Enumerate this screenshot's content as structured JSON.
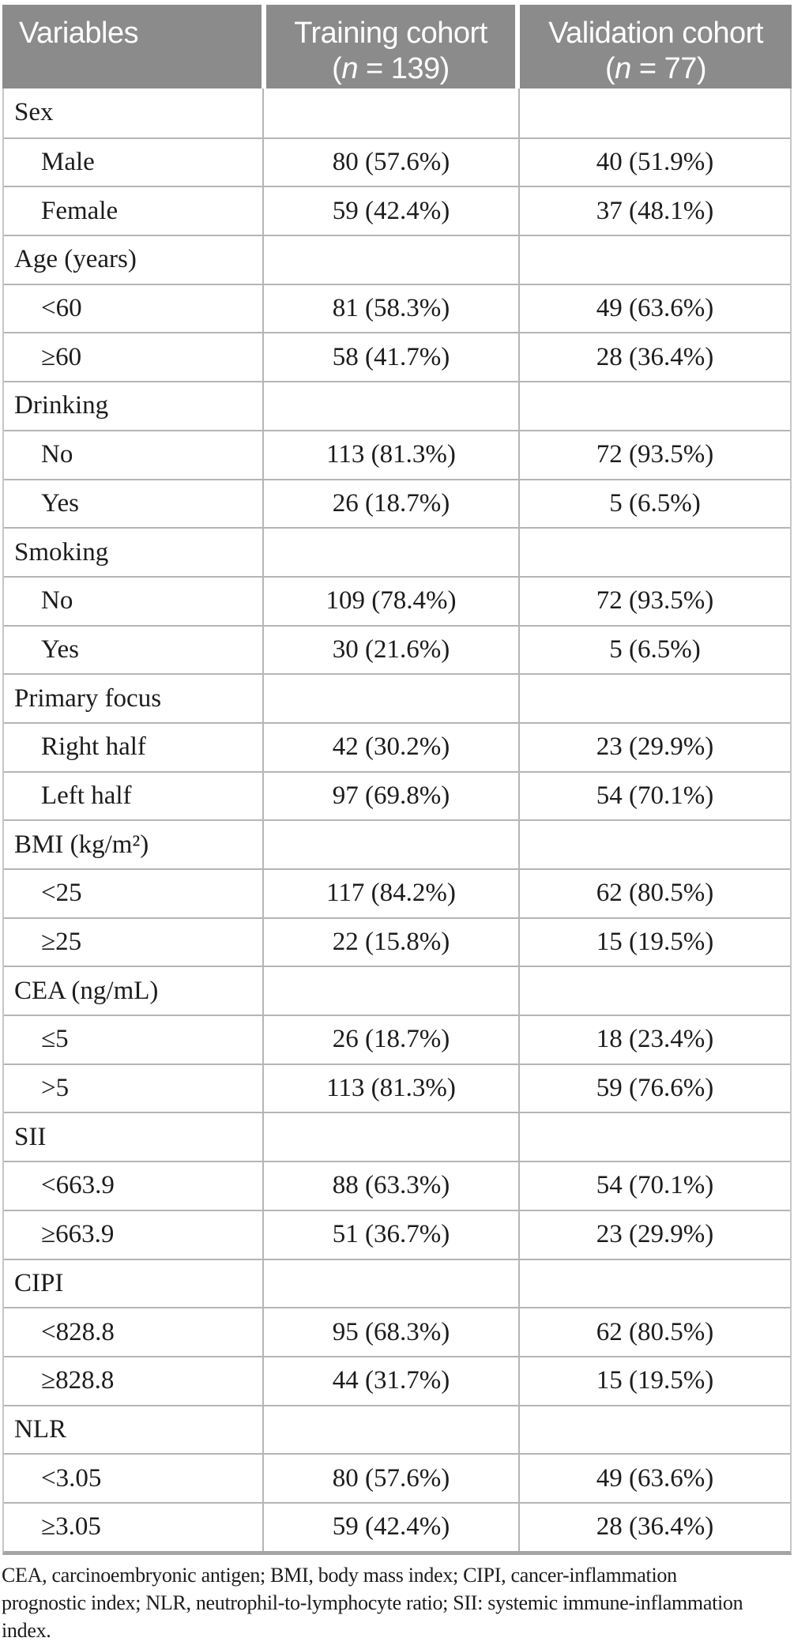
{
  "page": {
    "background_color": "#ffffff",
    "header_bg_color": "#8b8b8b",
    "header_text_color": "#ffffff",
    "body_text_color": "#1c1c1c",
    "border_color": "#b5b5b5"
  },
  "header": {
    "variables_label": "Variables",
    "training": {
      "title": "Training cohort",
      "n_open": "(",
      "n_italic": "n",
      "n_rest": " = 139)"
    },
    "validation": {
      "title": "Validation cohort",
      "n_open": "(",
      "n_italic": "n",
      "n_rest": " = 77)"
    }
  },
  "table": {
    "rows": [
      {
        "label": "Sex",
        "type": "category",
        "training": "",
        "validation": ""
      },
      {
        "label": "Male",
        "type": "item",
        "training": "80 (57.6%)",
        "validation": "40 (51.9%)"
      },
      {
        "label": "Female",
        "type": "item",
        "training": "59 (42.4%)",
        "validation": "37 (48.1%)"
      },
      {
        "label": "Age (years)",
        "type": "category",
        "training": "",
        "validation": ""
      },
      {
        "label": "<60",
        "type": "item",
        "training": "81 (58.3%)",
        "validation": "49 (63.6%)"
      },
      {
        "label": "≥60",
        "type": "item",
        "training": "58 (41.7%)",
        "validation": "28 (36.4%)"
      },
      {
        "label": "Drinking",
        "type": "category",
        "training": "",
        "validation": ""
      },
      {
        "label": "No",
        "type": "item",
        "training": "113 (81.3%)",
        "validation": "72 (93.5%)"
      },
      {
        "label": "Yes",
        "type": "item",
        "training": "26 (18.7%)",
        "validation": "5 (6.5%)"
      },
      {
        "label": "Smoking",
        "type": "category",
        "training": "",
        "validation": ""
      },
      {
        "label": "No",
        "type": "item",
        "training": "109 (78.4%)",
        "validation": "72 (93.5%)"
      },
      {
        "label": "Yes",
        "type": "item",
        "training": "30 (21.6%)",
        "validation": "5 (6.5%)"
      },
      {
        "label": "Primary focus",
        "type": "category",
        "training": "",
        "validation": ""
      },
      {
        "label": "Right half",
        "type": "item",
        "training": "42 (30.2%)",
        "validation": "23 (29.9%)"
      },
      {
        "label": "Left half",
        "type": "item",
        "training": "97 (69.8%)",
        "validation": "54 (70.1%)"
      },
      {
        "label": "BMI (kg/m²)",
        "type": "category",
        "training": "",
        "validation": ""
      },
      {
        "label": "<25",
        "type": "item",
        "training": "117 (84.2%)",
        "validation": "62 (80.5%)"
      },
      {
        "label": "≥25",
        "type": "item",
        "training": "22 (15.8%)",
        "validation": "15 (19.5%)"
      },
      {
        "label": "CEA (ng/mL)",
        "type": "category",
        "training": "",
        "validation": ""
      },
      {
        "label": "≤5",
        "type": "item",
        "training": "26 (18.7%)",
        "validation": "18 (23.4%)"
      },
      {
        "label": ">5",
        "type": "item",
        "training": "113 (81.3%)",
        "validation": "59 (76.6%)"
      },
      {
        "label": "SII",
        "type": "category",
        "training": "",
        "validation": ""
      },
      {
        "label": "<663.9",
        "type": "item",
        "training": "88 (63.3%)",
        "validation": "54 (70.1%)"
      },
      {
        "label": "≥663.9",
        "type": "item",
        "training": "51 (36.7%)",
        "validation": "23 (29.9%)"
      },
      {
        "label": "CIPI",
        "type": "category",
        "training": "",
        "validation": ""
      },
      {
        "label": "<828.8",
        "type": "item",
        "training": "95 (68.3%)",
        "validation": "62 (80.5%)"
      },
      {
        "label": "≥828.8",
        "type": "item",
        "training": "44 (31.7%)",
        "validation": "15 (19.5%)"
      },
      {
        "label": "NLR",
        "type": "category",
        "training": "",
        "validation": ""
      },
      {
        "label": "<3.05",
        "type": "item",
        "training": "80 (57.6%)",
        "validation": "49 (63.6%)"
      },
      {
        "label": "≥3.05",
        "type": "item",
        "training": "59 (42.4%)",
        "validation": "28 (36.4%)"
      }
    ]
  },
  "footnote": {
    "lines": [
      "CEA, carcinoembryonic antigen; BMI, body mass index; CIPI, cancer-inflammation",
      "prognostic index; NLR, neutrophil-to-lymphocyte ratio; SII: systemic immune-inflammation",
      "index."
    ]
  }
}
